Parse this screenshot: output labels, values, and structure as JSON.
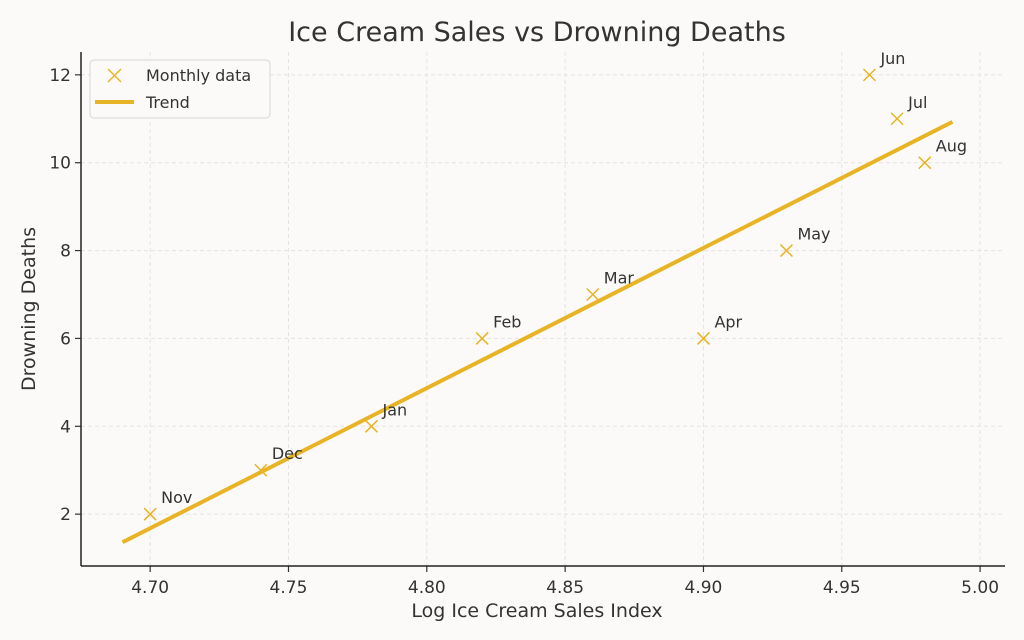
{
  "chart_data": {
    "type": "scatter",
    "title": "Ice Cream Sales vs Drowning Deaths",
    "xlabel": "Log Ice Cream Sales Index",
    "ylabel": "Drowning Deaths",
    "xlim": [
      4.675,
      5.009
    ],
    "ylim": [
      0.82,
      12.52
    ],
    "xticks": [
      "4.70",
      "4.75",
      "4.80",
      "4.85",
      "4.90",
      "4.95",
      "5.00"
    ],
    "yticks": [
      "2",
      "4",
      "6",
      "8",
      "10",
      "12"
    ],
    "grid": true,
    "legend": "top-left",
    "color": "#e8b426",
    "series": [
      {
        "name": "Monthly data",
        "type": "scatter",
        "marker": "x",
        "points": [
          {
            "label": "Nov",
            "x": 4.7,
            "y": 2
          },
          {
            "label": "Dec",
            "x": 4.74,
            "y": 3
          },
          {
            "label": "Jan",
            "x": 4.78,
            "y": 4
          },
          {
            "label": "Feb",
            "x": 4.82,
            "y": 6
          },
          {
            "label": "Mar",
            "x": 4.86,
            "y": 7
          },
          {
            "label": "Apr",
            "x": 4.9,
            "y": 6
          },
          {
            "label": "May",
            "x": 4.93,
            "y": 8
          },
          {
            "label": "Jun",
            "x": 4.96,
            "y": 12
          },
          {
            "label": "Jul",
            "x": 4.97,
            "y": 11
          },
          {
            "label": "Aug",
            "x": 4.98,
            "y": 10
          }
        ]
      },
      {
        "name": "Trend",
        "type": "line",
        "x": [
          4.69,
          4.99
        ],
        "y": [
          1.36,
          10.93
        ]
      }
    ]
  }
}
